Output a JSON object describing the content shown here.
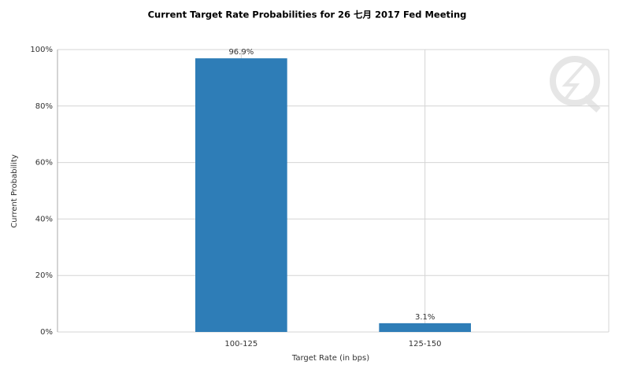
{
  "chart_data": {
    "type": "bar",
    "title": "Current Target Rate Probabilities for 26 七月 2017  Fed Meeting",
    "x_label": "Target Rate (in bps)",
    "y_label": "Current Probability",
    "categories": [
      "100-125",
      "125-150"
    ],
    "values": [
      96.9,
      3.1
    ],
    "value_labels": [
      "96.9%",
      "3.1%"
    ],
    "color": "#2e7db7",
    "ylim": [
      0,
      100
    ],
    "yticks": [
      {
        "value": 0,
        "label": "0%"
      },
      {
        "value": 20,
        "label": "20%"
      },
      {
        "value": 40,
        "label": "40%"
      },
      {
        "value": 60,
        "label": "60%"
      },
      {
        "value": 80,
        "label": "80%"
      },
      {
        "value": 100,
        "label": "100%"
      }
    ],
    "grid": true
  }
}
